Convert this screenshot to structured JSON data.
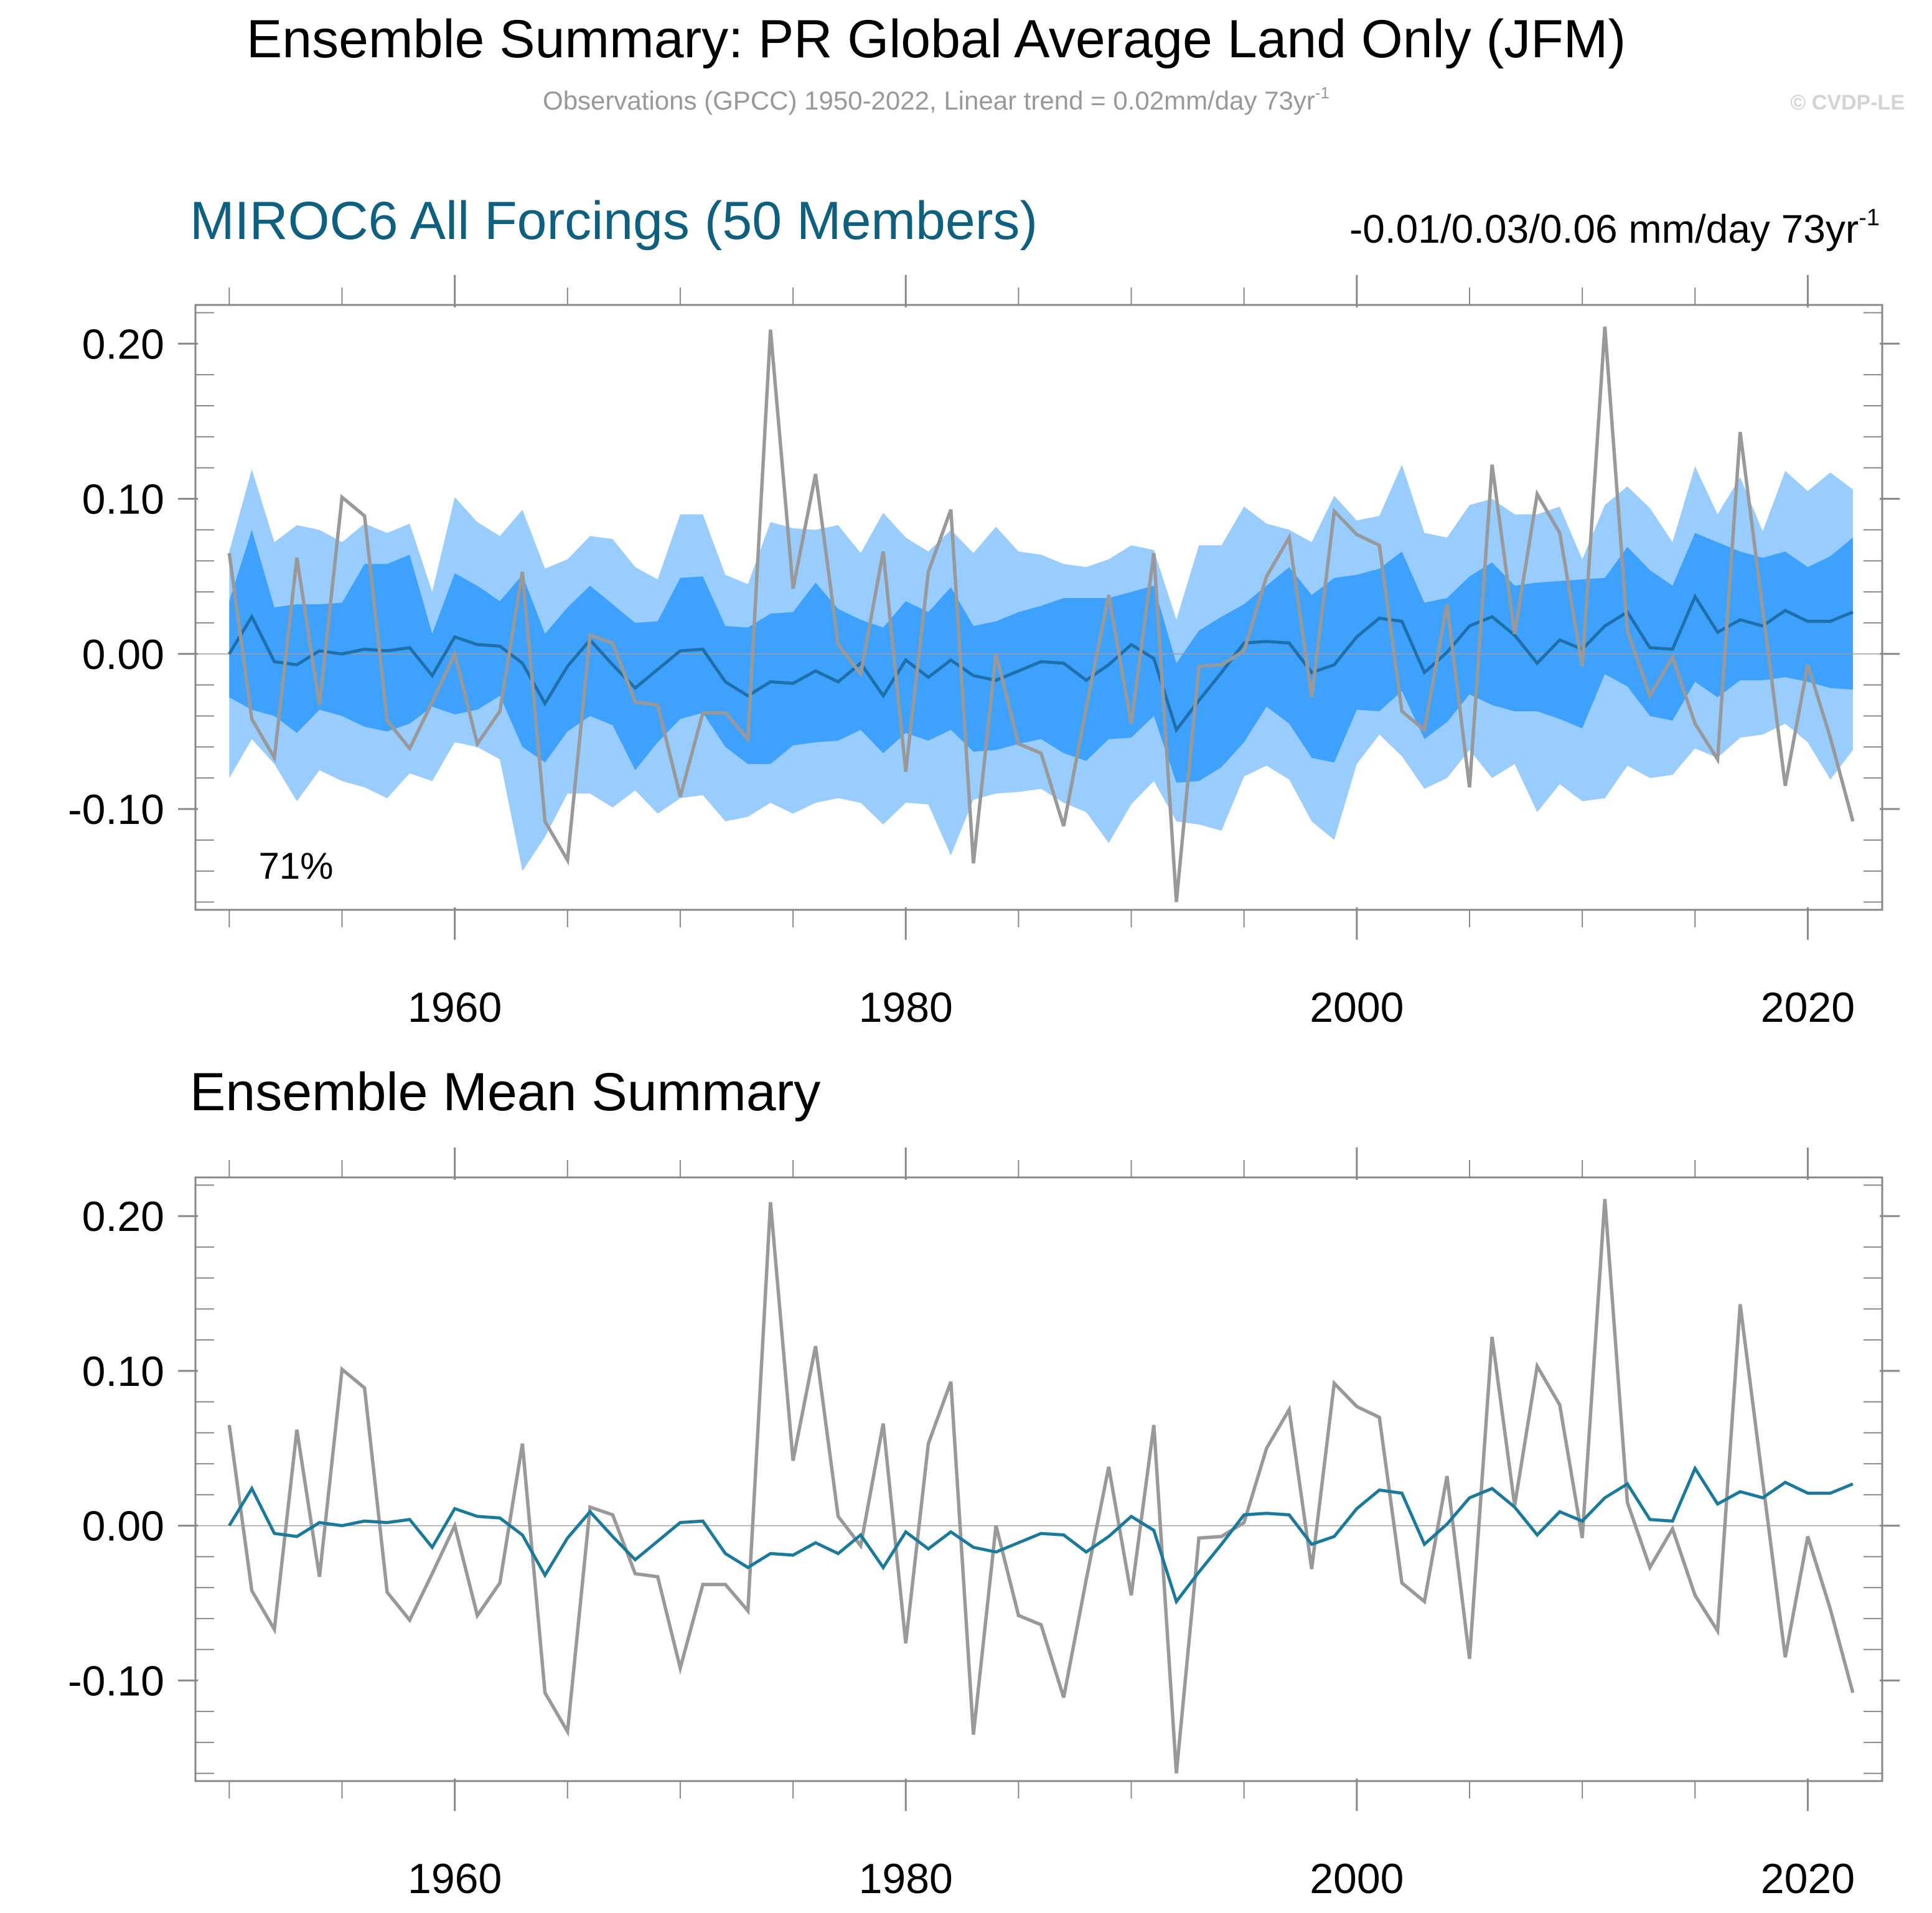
{
  "header": {
    "main_title": "Ensemble Summary: PR Global Average Land Only (JFM)",
    "obs_subtitle": "Observations (GPCC) 1950-2022, Linear trend = 0.02mm/day 73yr",
    "obs_subtitle_sup": "-1",
    "watermark": "© CVDP-LE"
  },
  "colors": {
    "ensemble_mean": "#1a7a9c",
    "ensemble_mean_top": "#1f6fa8",
    "band_outer": "#99ccff",
    "band_inner": "#3da1fd",
    "observations": "#999999",
    "frame": "#888888",
    "model_title": "#0e6080"
  },
  "chart_data": [
    {
      "type": "area",
      "title": "MIROC6 All Forcings (50 Members)",
      "trend_text": "-0.01/0.03/0.06 mm/day 73yr",
      "trend_sup": "-1",
      "percent_label": "71%",
      "xlim": [
        1948.5,
        2023.3
      ],
      "ylim": [
        -0.165,
        0.225
      ],
      "x_ticks": [
        1960,
        1980,
        2000,
        2020
      ],
      "x_tick_labels": [
        "1960",
        "1980",
        "2000",
        "2020"
      ],
      "y_ticks": [
        0.2,
        0.1,
        0.0,
        -0.1
      ],
      "y_tick_labels": [
        "0.20",
        "0.10",
        "0.00",
        "-0.10"
      ],
      "x": [
        1950,
        1951,
        1952,
        1953,
        1954,
        1955,
        1956,
        1957,
        1958,
        1959,
        1960,
        1961,
        1962,
        1963,
        1964,
        1965,
        1966,
        1967,
        1968,
        1969,
        1970,
        1971,
        1972,
        1973,
        1974,
        1975,
        1976,
        1977,
        1978,
        1979,
        1980,
        1981,
        1982,
        1983,
        1984,
        1985,
        1986,
        1987,
        1988,
        1989,
        1990,
        1991,
        1992,
        1993,
        1994,
        1995,
        1996,
        1997,
        1998,
        1999,
        2000,
        2001,
        2002,
        2003,
        2004,
        2005,
        2006,
        2007,
        2008,
        2009,
        2010,
        2011,
        2012,
        2013,
        2014,
        2015,
        2016,
        2017,
        2018,
        2019,
        2020,
        2021,
        2022
      ],
      "band_outer_upper": [
        0.066,
        0.119,
        0.072,
        0.083,
        0.08,
        0.072,
        0.084,
        0.078,
        0.084,
        0.04,
        0.101,
        0.085,
        0.076,
        0.093,
        0.055,
        0.061,
        0.076,
        0.074,
        0.056,
        0.048,
        0.09,
        0.09,
        0.051,
        0.045,
        0.085,
        0.081,
        0.08,
        0.083,
        0.065,
        0.091,
        0.075,
        0.066,
        0.08,
        0.065,
        0.082,
        0.066,
        0.064,
        0.058,
        0.056,
        0.061,
        0.07,
        0.067,
        0.022,
        0.07,
        0.07,
        0.095,
        0.084,
        0.08,
        0.072,
        0.102,
        0.086,
        0.089,
        0.122,
        0.078,
        0.075,
        0.096,
        0.1,
        0.09,
        0.09,
        0.095,
        0.061,
        0.096,
        0.108,
        0.094,
        0.072,
        0.121,
        0.09,
        0.114,
        0.079,
        0.118,
        0.105,
        0.117,
        0.106
      ],
      "band_outer_lower": [
        -0.08,
        -0.055,
        -0.071,
        -0.095,
        -0.075,
        -0.082,
        -0.086,
        -0.093,
        -0.077,
        -0.082,
        -0.057,
        -0.06,
        -0.068,
        -0.14,
        -0.118,
        -0.09,
        -0.09,
        -0.099,
        -0.088,
        -0.103,
        -0.093,
        -0.091,
        -0.108,
        -0.105,
        -0.096,
        -0.103,
        -0.096,
        -0.093,
        -0.096,
        -0.11,
        -0.096,
        -0.097,
        -0.13,
        -0.094,
        -0.09,
        -0.089,
        -0.087,
        -0.096,
        -0.102,
        -0.122,
        -0.097,
        -0.082,
        -0.108,
        -0.11,
        -0.114,
        -0.079,
        -0.072,
        -0.081,
        -0.108,
        -0.12,
        -0.071,
        -0.052,
        -0.066,
        -0.087,
        -0.08,
        -0.062,
        -0.08,
        -0.071,
        -0.102,
        -0.084,
        -0.095,
        -0.093,
        -0.072,
        -0.08,
        -0.078,
        -0.061,
        -0.067,
        -0.054,
        -0.052,
        -0.045,
        -0.057,
        -0.081,
        -0.062
      ],
      "band_inner_upper": [
        0.034,
        0.08,
        0.03,
        0.032,
        0.032,
        0.033,
        0.058,
        0.058,
        0.064,
        0.013,
        0.052,
        0.044,
        0.034,
        0.051,
        0.013,
        0.03,
        0.044,
        0.032,
        0.02,
        0.021,
        0.049,
        0.05,
        0.018,
        0.017,
        0.026,
        0.027,
        0.046,
        0.029,
        0.022,
        0.017,
        0.034,
        0.027,
        0.043,
        0.018,
        0.021,
        0.027,
        0.031,
        0.036,
        0.036,
        0.036,
        0.04,
        0.044,
        -0.006,
        0.015,
        0.024,
        0.032,
        0.044,
        0.056,
        0.038,
        0.049,
        0.051,
        0.055,
        0.066,
        0.033,
        0.036,
        0.05,
        0.059,
        0.044,
        0.046,
        0.047,
        0.048,
        0.049,
        0.069,
        0.054,
        0.044,
        0.078,
        0.072,
        0.066,
        0.062,
        0.066,
        0.056,
        0.063,
        0.075
      ],
      "band_inner_lower": [
        -0.028,
        -0.036,
        -0.04,
        -0.051,
        -0.036,
        -0.04,
        -0.047,
        -0.05,
        -0.045,
        -0.034,
        -0.039,
        -0.036,
        -0.027,
        -0.06,
        -0.07,
        -0.05,
        -0.04,
        -0.046,
        -0.075,
        -0.057,
        -0.042,
        -0.038,
        -0.06,
        -0.071,
        -0.071,
        -0.059,
        -0.057,
        -0.056,
        -0.049,
        -0.064,
        -0.051,
        -0.056,
        -0.049,
        -0.063,
        -0.062,
        -0.058,
        -0.055,
        -0.064,
        -0.069,
        -0.055,
        -0.054,
        -0.04,
        -0.083,
        -0.082,
        -0.073,
        -0.057,
        -0.034,
        -0.045,
        -0.067,
        -0.07,
        -0.036,
        -0.037,
        -0.024,
        -0.055,
        -0.044,
        -0.026,
        -0.033,
        -0.037,
        -0.037,
        -0.042,
        -0.048,
        -0.013,
        -0.021,
        -0.04,
        -0.043,
        -0.018,
        -0.028,
        -0.017,
        -0.017,
        -0.015,
        -0.018,
        -0.022,
        -0.023
      ],
      "series": [
        {
          "name": "Ensemble Mean",
          "values": [
            0.0,
            0.024,
            -0.005,
            -0.007,
            0.002,
            0.0,
            0.003,
            0.002,
            0.004,
            -0.014,
            0.011,
            0.006,
            0.005,
            -0.006,
            -0.032,
            -0.008,
            0.009,
            -0.007,
            -0.022,
            -0.01,
            0.002,
            0.003,
            -0.018,
            -0.027,
            -0.018,
            -0.019,
            -0.011,
            -0.018,
            -0.006,
            -0.027,
            -0.004,
            -0.015,
            -0.004,
            -0.014,
            -0.017,
            -0.011,
            -0.005,
            -0.006,
            -0.017,
            -0.007,
            0.006,
            -0.003,
            -0.049,
            -0.03,
            -0.012,
            0.007,
            0.008,
            0.007,
            -0.012,
            -0.007,
            0.011,
            0.023,
            0.021,
            -0.012,
            0.001,
            0.018,
            0.024,
            0.012,
            -0.006,
            0.009,
            0.003,
            0.018,
            0.027,
            0.004,
            0.003,
            0.037,
            0.014,
            0.022,
            0.018,
            0.028,
            0.021,
            0.021,
            0.027
          ]
        },
        {
          "name": "Observations (GPCC)",
          "values": [
            0.065,
            -0.042,
            -0.067,
            0.062,
            -0.033,
            0.101,
            0.089,
            -0.043,
            -0.061,
            -0.031,
            0.0,
            -0.058,
            -0.037,
            0.053,
            -0.108,
            -0.133,
            0.012,
            0.007,
            -0.031,
            -0.033,
            -0.092,
            -0.038,
            -0.038,
            -0.055,
            0.209,
            0.042,
            0.116,
            0.006,
            -0.013,
            0.066,
            -0.076,
            0.053,
            0.093,
            -0.135,
            0.0,
            -0.058,
            -0.064,
            -0.111,
            -0.035,
            0.038,
            -0.045,
            0.065,
            -0.16,
            -0.008,
            -0.007,
            0.002,
            0.05,
            0.075,
            -0.028,
            0.092,
            0.077,
            0.07,
            -0.037,
            -0.049,
            0.032,
            -0.086,
            0.122,
            0.013,
            0.103,
            0.078,
            -0.008,
            0.211,
            0.015,
            -0.027,
            -0.002,
            -0.045,
            -0.068,
            0.143,
            0.029,
            -0.085,
            -0.007,
            -0.054,
            -0.108
          ]
        }
      ]
    },
    {
      "type": "line",
      "title": "Ensemble Mean Summary",
      "xlim": [
        1948.5,
        2023.3
      ],
      "ylim": [
        -0.165,
        0.225
      ],
      "x_ticks": [
        1960,
        1980,
        2000,
        2020
      ],
      "x_tick_labels": [
        "1960",
        "1980",
        "2000",
        "2020"
      ],
      "y_ticks": [
        0.2,
        0.1,
        0.0,
        -0.1
      ],
      "y_tick_labels": [
        "0.20",
        "0.10",
        "0.00",
        "-0.10"
      ],
      "series_ref": "same x and series as panel 1 (ensemble mean and observations)"
    }
  ]
}
